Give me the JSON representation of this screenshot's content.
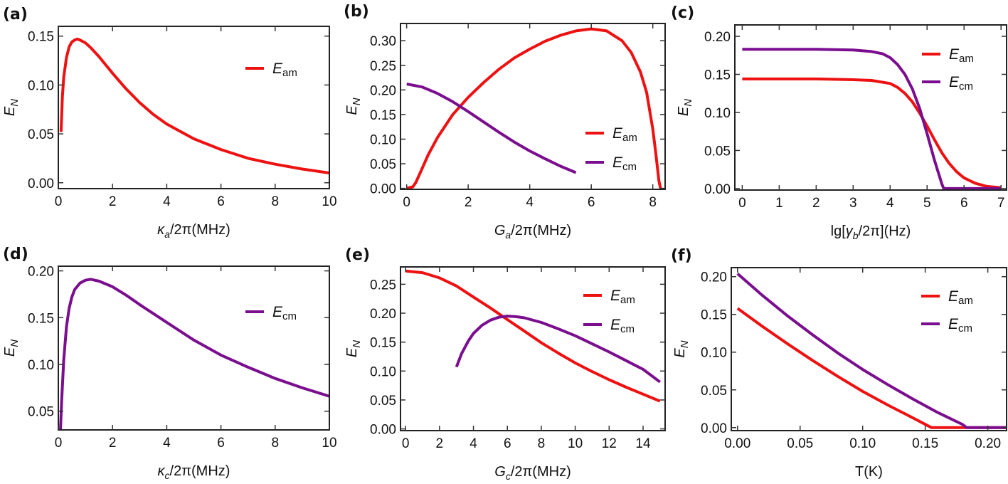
{
  "colors": {
    "red": "#ee1111",
    "purple": "#7a0e8f"
  },
  "chart_data": [
    {
      "type": "line",
      "panel": "(a)",
      "xlabel": "κa/2π(MHz)",
      "ylabel": "EN",
      "xlim": [
        0,
        10
      ],
      "ylim": [
        -0.006,
        0.16
      ],
      "xticks": [
        0,
        2,
        4,
        6,
        8,
        10
      ],
      "xtick_labels": [
        "0",
        "2",
        "4",
        "6",
        "8",
        "10"
      ],
      "yticks": [
        0,
        0.05,
        0.1,
        0.15
      ],
      "ytick_labels": [
        "0.00",
        "0.05",
        "0.10",
        "0.15"
      ],
      "legend": "top-right",
      "series": [
        {
          "name": "Eam",
          "name_main": "E",
          "name_sub": "am",
          "color": "#ee1111",
          "x": [
            0.1,
            0.15,
            0.2,
            0.3,
            0.4,
            0.5,
            0.6,
            0.7,
            0.8,
            1.0,
            1.2,
            1.5,
            2.0,
            2.5,
            3.0,
            3.5,
            4.0,
            5.0,
            6.0,
            7.0,
            8.0,
            9.0,
            10.0
          ],
          "y": [
            0.052,
            0.088,
            0.108,
            0.128,
            0.139,
            0.144,
            0.146,
            0.147,
            0.146,
            0.143,
            0.138,
            0.129,
            0.112,
            0.096,
            0.082,
            0.07,
            0.06,
            0.045,
            0.034,
            0.025,
            0.019,
            0.014,
            0.01
          ]
        }
      ]
    },
    {
      "type": "line",
      "panel": "(b)",
      "xlabel": "Ga/2π(MHz)",
      "ylabel": "EN",
      "xlim": [
        -0.2,
        8.4
      ],
      "ylim": [
        -0.002,
        0.335
      ],
      "xticks": [
        0,
        2,
        4,
        6,
        8
      ],
      "xtick_labels": [
        "0",
        "2",
        "4",
        "6",
        "8"
      ],
      "yticks": [
        0,
        0.05,
        0.1,
        0.15,
        0.2,
        0.25,
        0.3
      ],
      "ytick_labels": [
        "0.00",
        "0.05",
        "0.10",
        "0.15",
        "0.20",
        "0.25",
        "0.30"
      ],
      "legend": "bottom-right",
      "series": [
        {
          "name": "Eam",
          "name_main": "E",
          "name_sub": "am",
          "color": "#ee1111",
          "x": [
            0.0,
            0.2,
            0.3,
            0.5,
            0.7,
            1.0,
            1.5,
            2.0,
            2.5,
            3.0,
            3.5,
            4.0,
            4.5,
            5.0,
            5.5,
            6.0,
            6.5,
            7.0,
            7.3,
            7.6,
            7.8,
            8.0,
            8.1,
            8.2,
            8.25
          ],
          "y": [
            0.0,
            0.003,
            0.012,
            0.04,
            0.068,
            0.103,
            0.15,
            0.185,
            0.215,
            0.242,
            0.265,
            0.283,
            0.299,
            0.311,
            0.32,
            0.324,
            0.32,
            0.3,
            0.276,
            0.236,
            0.195,
            0.12,
            0.07,
            0.015,
            0.0
          ]
        },
        {
          "name": "Ecm",
          "name_main": "E",
          "name_sub": "cm",
          "color": "#7a0e8f",
          "x": [
            0.0,
            0.5,
            1.0,
            1.5,
            2.0,
            2.5,
            3.0,
            3.5,
            4.0,
            4.5,
            5.0,
            5.5
          ],
          "y": [
            0.212,
            0.206,
            0.193,
            0.176,
            0.156,
            0.135,
            0.114,
            0.094,
            0.076,
            0.06,
            0.045,
            0.032
          ]
        }
      ]
    },
    {
      "type": "line",
      "panel": "(c)",
      "xlabel": "lg[γb/2π](Hz)",
      "ylabel": "EN",
      "xlim": [
        -0.2,
        7.15
      ],
      "ylim": [
        -0.002,
        0.215
      ],
      "xticks": [
        0,
        1,
        2,
        3,
        4,
        5,
        6,
        7
      ],
      "xtick_labels": [
        "0",
        "1",
        "2",
        "3",
        "4",
        "5",
        "6",
        "7"
      ],
      "yticks": [
        0,
        0.05,
        0.1,
        0.15,
        0.2
      ],
      "ytick_labels": [
        "0.00",
        "0.05",
        "0.10",
        "0.15",
        "0.20"
      ],
      "legend": "top-right",
      "series": [
        {
          "name": "Eam",
          "name_main": "E",
          "name_sub": "am",
          "color": "#ee1111",
          "x": [
            0.0,
            1.0,
            2.0,
            3.0,
            3.5,
            4.0,
            4.2,
            4.4,
            4.6,
            4.8,
            5.0,
            5.2,
            5.4,
            5.6,
            5.8,
            6.0,
            6.3,
            6.6,
            7.0
          ],
          "y": [
            0.144,
            0.144,
            0.144,
            0.143,
            0.142,
            0.138,
            0.133,
            0.125,
            0.114,
            0.099,
            0.082,
            0.064,
            0.047,
            0.033,
            0.022,
            0.014,
            0.007,
            0.003,
            0.001
          ]
        },
        {
          "name": "Ecm",
          "name_main": "E",
          "name_sub": "cm",
          "color": "#7a0e8f",
          "x": [
            0.0,
            1.0,
            2.0,
            3.0,
            3.5,
            3.8,
            4.0,
            4.2,
            4.4,
            4.6,
            4.8,
            5.0,
            5.2,
            5.4,
            5.45,
            6.0,
            7.0
          ],
          "y": [
            0.183,
            0.183,
            0.183,
            0.182,
            0.18,
            0.177,
            0.172,
            0.163,
            0.15,
            0.131,
            0.105,
            0.072,
            0.037,
            0.006,
            0.0,
            0.0,
            0.0
          ]
        }
      ]
    },
    {
      "type": "line",
      "panel": "(d)",
      "xlabel": "κc/2π(MHz)",
      "ylabel": "EN",
      "xlim": [
        0,
        10
      ],
      "ylim": [
        0.03,
        0.205
      ],
      "xticks": [
        0,
        2,
        4,
        6,
        8,
        10
      ],
      "xtick_labels": [
        "0",
        "2",
        "4",
        "6",
        "8",
        "10"
      ],
      "yticks": [
        0.05,
        0.1,
        0.15,
        0.2
      ],
      "ytick_labels": [
        "0.05",
        "0.10",
        "0.15",
        "0.20"
      ],
      "legend": "top-right",
      "series": [
        {
          "name": "Ecm",
          "name_main": "E",
          "name_sub": "cm",
          "color": "#7a0e8f",
          "x": [
            0.08,
            0.12,
            0.2,
            0.3,
            0.4,
            0.5,
            0.6,
            0.8,
            1.0,
            1.2,
            1.5,
            2.0,
            2.5,
            3.0,
            4.0,
            5.0,
            6.0,
            7.0,
            8.0,
            9.0,
            10.0
          ],
          "y": [
            0.03,
            0.06,
            0.105,
            0.14,
            0.16,
            0.172,
            0.18,
            0.187,
            0.19,
            0.191,
            0.189,
            0.183,
            0.174,
            0.164,
            0.145,
            0.126,
            0.11,
            0.097,
            0.085,
            0.075,
            0.066
          ]
        }
      ]
    },
    {
      "type": "line",
      "panel": "(e)",
      "xlabel": "Gc/2π(MHz)",
      "ylabel": "EN",
      "xlim": [
        -0.3,
        15.3
      ],
      "ylim": [
        -0.003,
        0.28
      ],
      "xticks": [
        0,
        2,
        4,
        6,
        8,
        10,
        12,
        14
      ],
      "xtick_labels": [
        "0",
        "2",
        "4",
        "6",
        "8",
        "10",
        "12",
        "14"
      ],
      "yticks": [
        0,
        0.05,
        0.1,
        0.15,
        0.2,
        0.25
      ],
      "ytick_labels": [
        "0.00",
        "0.05",
        "0.10",
        "0.15",
        "0.20",
        "0.25"
      ],
      "legend": "top-right",
      "series": [
        {
          "name": "Eam",
          "name_main": "E",
          "name_sub": "am",
          "color": "#ee1111",
          "x": [
            0.0,
            1.0,
            2.0,
            3.0,
            4.0,
            5.0,
            6.0,
            7.0,
            8.0,
            9.0,
            10.0,
            11.0,
            12.0,
            13.0,
            14.0,
            15.0
          ],
          "y": [
            0.273,
            0.27,
            0.261,
            0.247,
            0.228,
            0.209,
            0.189,
            0.169,
            0.149,
            0.131,
            0.114,
            0.099,
            0.085,
            0.072,
            0.06,
            0.048
          ]
        },
        {
          "name": "Ecm",
          "name_main": "E",
          "name_sub": "cm",
          "color": "#7a0e8f",
          "x": [
            3.0,
            3.3,
            3.7,
            4.0,
            4.5,
            5.0,
            5.5,
            6.0,
            6.5,
            7.0,
            8.0,
            9.0,
            10.0,
            11.0,
            12.0,
            13.0,
            14.0,
            15.0
          ],
          "y": [
            0.107,
            0.13,
            0.152,
            0.165,
            0.179,
            0.188,
            0.193,
            0.195,
            0.194,
            0.192,
            0.184,
            0.173,
            0.161,
            0.147,
            0.133,
            0.118,
            0.103,
            0.081
          ]
        }
      ]
    },
    {
      "type": "line",
      "panel": "(f)",
      "xlabel": "T(K)",
      "ylabel": "EN",
      "xlim": [
        -0.005,
        0.215
      ],
      "ylim": [
        -0.004,
        0.212
      ],
      "xticks": [
        0,
        0.05,
        0.1,
        0.15,
        0.2
      ],
      "xtick_labels": [
        "0.00",
        "0.05",
        "0.10",
        "0.15",
        "0.20"
      ],
      "yticks": [
        0,
        0.05,
        0.1,
        0.15,
        0.2
      ],
      "ytick_labels": [
        "0.00",
        "0.05",
        "0.10",
        "0.15",
        "0.20"
      ],
      "legend": "top-right",
      "series": [
        {
          "name": "Eam",
          "name_main": "E",
          "name_sub": "am",
          "color": "#ee1111",
          "x": [
            0.0,
            0.02,
            0.04,
            0.06,
            0.08,
            0.1,
            0.12,
            0.14,
            0.155,
            0.16,
            0.18,
            0.2,
            0.215
          ],
          "y": [
            0.158,
            0.134,
            0.111,
            0.089,
            0.068,
            0.048,
            0.03,
            0.013,
            0.0,
            0.0,
            0.0,
            0.0,
            0.0
          ]
        },
        {
          "name": "Ecm",
          "name_main": "E",
          "name_sub": "cm",
          "color": "#7a0e8f",
          "x": [
            0.0,
            0.02,
            0.04,
            0.06,
            0.08,
            0.1,
            0.12,
            0.14,
            0.16,
            0.18,
            0.183,
            0.2,
            0.215
          ],
          "y": [
            0.204,
            0.175,
            0.148,
            0.123,
            0.099,
            0.077,
            0.057,
            0.038,
            0.02,
            0.004,
            0.0,
            0.0,
            0.0
          ]
        }
      ]
    }
  ]
}
